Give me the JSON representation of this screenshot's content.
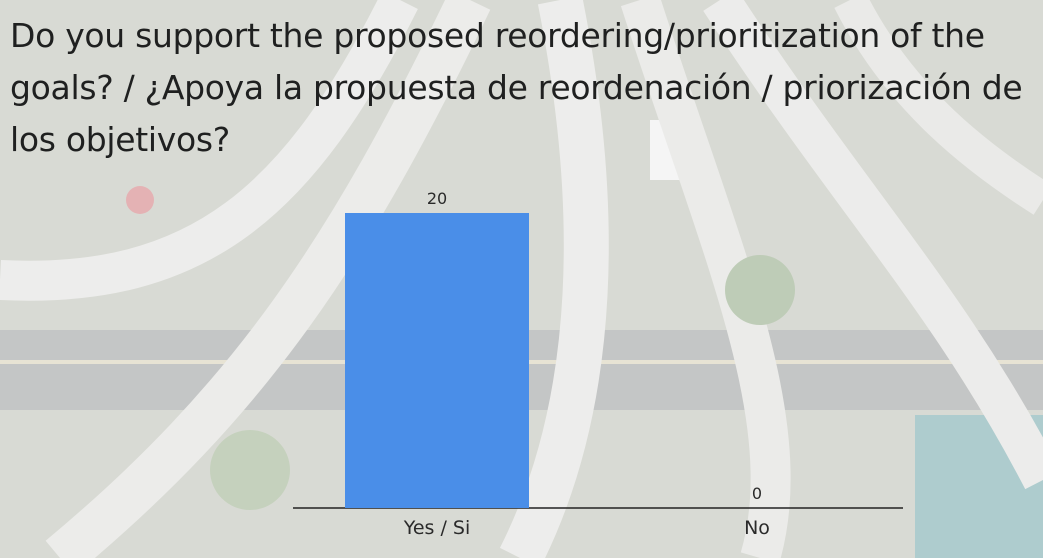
{
  "title": "Do you support the proposed reordering/prioritization of the goals? / ¿Apoya la propuesta de reordenación / priorización de los objetivos?",
  "chart_data": {
    "type": "bar",
    "categories": [
      "Yes / Si",
      "No"
    ],
    "values": [
      20,
      0
    ],
    "color": "#4a8ee8"
  }
}
